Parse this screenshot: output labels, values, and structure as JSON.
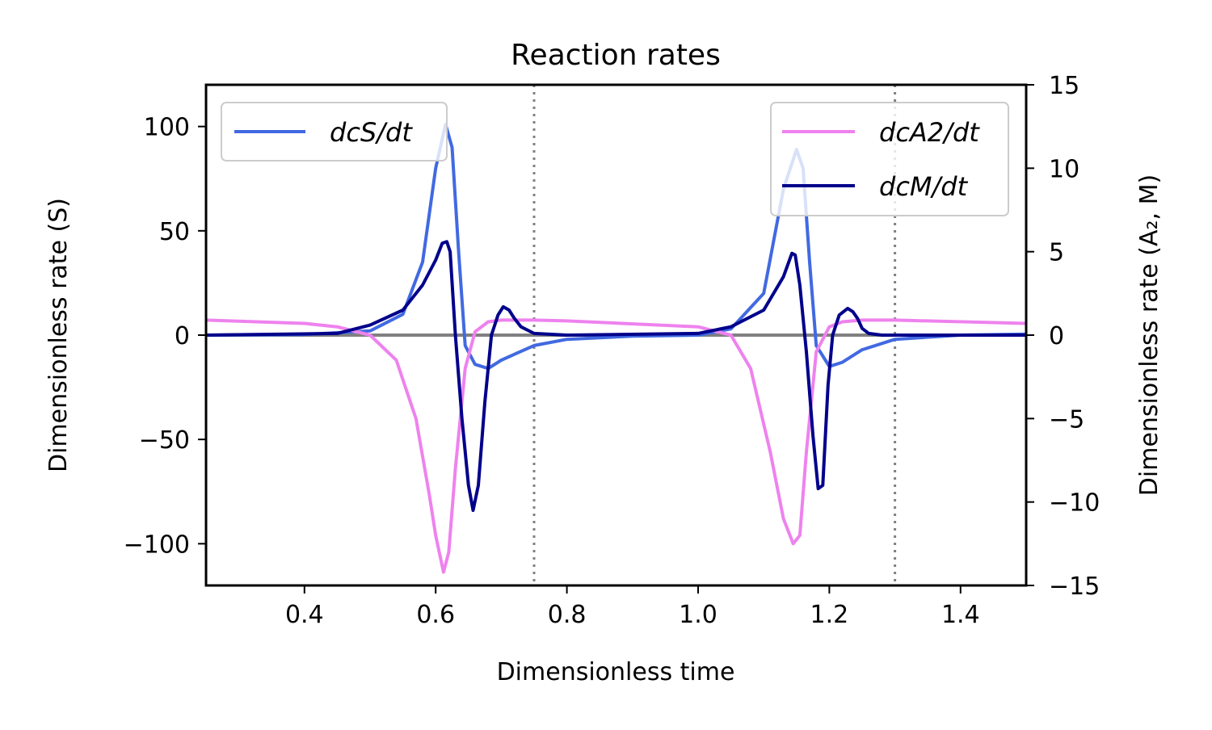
{
  "chart_data": {
    "type": "line",
    "title": "Reaction rates",
    "xlabel": "Dimensionless time",
    "ylabel_left": "Dimensionless rate (S)",
    "ylabel_right": "Dimensionless rate (A₂, M)",
    "xlim": [
      0.25,
      1.5
    ],
    "ylim_left": [
      -120,
      120
    ],
    "ylim_right": [
      -15,
      15
    ],
    "xticks": [
      "0.4",
      "0.6",
      "0.8",
      "1.0",
      "1.2",
      "1.4"
    ],
    "yticks_left": [
      "100",
      "50",
      "0",
      "−50",
      "−100"
    ],
    "yticks_right": [
      "15",
      "10",
      "5",
      "0",
      "−5",
      "−10",
      "−15"
    ],
    "vlines": [
      0.75,
      1.3
    ],
    "grid": false,
    "legend_left": {
      "placement": "top-left",
      "entries": [
        "dcS/dt"
      ]
    },
    "legend_right": {
      "placement": "top-right",
      "entries": [
        "dcA2/dt",
        "dcM/dt"
      ]
    },
    "colors": {
      "S": "#4169e1",
      "A2": "#ee82ee",
      "M": "#00008b",
      "zero": "#808080",
      "vline": "#808080"
    },
    "series": [
      {
        "name": "dcS/dt",
        "axis": "left",
        "color": "#4169e1",
        "x": [
          0.25,
          0.4,
          0.5,
          0.55,
          0.58,
          0.6,
          0.615,
          0.625,
          0.635,
          0.645,
          0.66,
          0.68,
          0.7,
          0.75,
          0.8,
          0.9,
          1.0,
          1.05,
          1.1,
          1.13,
          1.15,
          1.16,
          1.17,
          1.18,
          1.2,
          1.22,
          1.25,
          1.3,
          1.4,
          1.5
        ],
        "y": [
          0,
          0.3,
          2,
          10,
          35,
          80,
          101,
          90,
          40,
          -5,
          -14,
          -16,
          -12,
          -5,
          -2,
          -0.5,
          0,
          3,
          20,
          70,
          89,
          80,
          35,
          -5,
          -15,
          -13,
          -7,
          -2,
          0,
          0.5
        ]
      },
      {
        "name": "dcA2/dt",
        "axis": "right",
        "color": "#ee82ee",
        "x": [
          0.25,
          0.4,
          0.45,
          0.5,
          0.54,
          0.57,
          0.59,
          0.6,
          0.612,
          0.62,
          0.63,
          0.645,
          0.66,
          0.68,
          0.7,
          0.75,
          0.8,
          1.0,
          1.05,
          1.08,
          1.11,
          1.13,
          1.145,
          1.155,
          1.165,
          1.18,
          1.2,
          1.22,
          1.25,
          1.3,
          1.5
        ],
        "y": [
          0.9,
          0.7,
          0.5,
          0,
          -1.5,
          -5,
          -9.5,
          -12,
          -14.2,
          -13,
          -8,
          -2,
          0.2,
          0.8,
          0.9,
          0.9,
          0.85,
          0.5,
          0,
          -2,
          -7,
          -11,
          -12.5,
          -12,
          -7,
          -1,
          0.5,
          0.8,
          0.9,
          0.9,
          0.7
        ]
      },
      {
        "name": "dcM/dt",
        "axis": "right",
        "color": "#00008b",
        "x": [
          0.25,
          0.45,
          0.5,
          0.55,
          0.58,
          0.6,
          0.61,
          0.617,
          0.622,
          0.63,
          0.64,
          0.65,
          0.657,
          0.665,
          0.675,
          0.685,
          0.695,
          0.703,
          0.712,
          0.72,
          0.73,
          0.75,
          0.8,
          1.0,
          1.05,
          1.1,
          1.13,
          1.143,
          1.148,
          1.155,
          1.165,
          1.175,
          1.183,
          1.19,
          1.198,
          1.205,
          1.215,
          1.228,
          1.236,
          1.243,
          1.25,
          1.26,
          1.28,
          1.3,
          1.4,
          1.5
        ],
        "y": [
          0,
          0.1,
          0.6,
          1.5,
          3,
          4.5,
          5.5,
          5.6,
          5,
          0,
          -5,
          -9,
          -10.5,
          -9,
          -4,
          0,
          1.2,
          1.7,
          1.5,
          1,
          0.5,
          0.1,
          0,
          0.1,
          0.5,
          1.5,
          3.5,
          4.9,
          4.8,
          3,
          -1,
          -6,
          -9.2,
          -9,
          -3,
          0,
          1.2,
          1.6,
          1.4,
          1,
          0.4,
          0.1,
          0,
          0,
          0,
          0
        ]
      }
    ]
  }
}
